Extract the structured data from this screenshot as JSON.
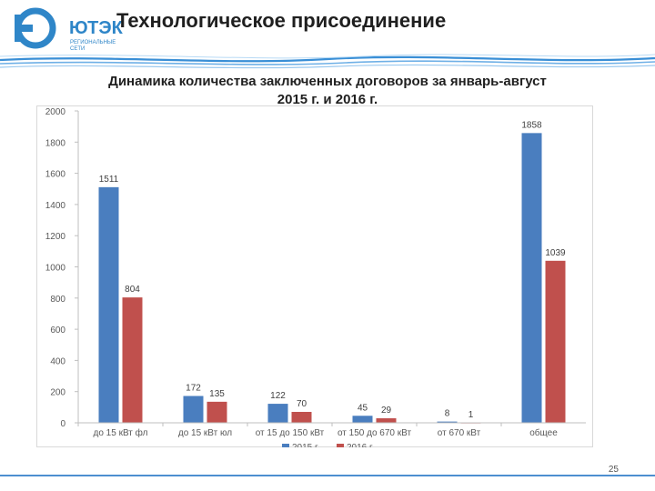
{
  "header": {
    "logo_text": "ЮТЭК",
    "logo_sub_1": "РЕГИОНАЛЬНЫЕ",
    "logo_sub_2": "СЕТИ",
    "title": "Технологическое присоединение"
  },
  "colors": {
    "series_2015": "#4a7ebf",
    "series_2016": "#c0504d",
    "brand": "#2f86c8"
  },
  "chart_data": {
    "type": "bar",
    "title_line1": "Динамика количества заключенных договоров за январь-август",
    "title_line2": "2015 г. и 2016 г.",
    "categories": [
      "до 15 кВт фл",
      "до 15 кВт юл",
      "от 15 до 150 кВт",
      "от 150 до 670 кВт",
      "от 670 кВт",
      "общее"
    ],
    "series": [
      {
        "name": "2015 г.",
        "values": [
          1511,
          172,
          122,
          45,
          8,
          1858
        ]
      },
      {
        "name": "2016 г.",
        "values": [
          804,
          135,
          70,
          29,
          1,
          1039
        ]
      }
    ],
    "y_ticks": [
      "0",
      "200",
      "400",
      "600",
      "800",
      "1000",
      "1200",
      "1400",
      "1600",
      "1800",
      "2000"
    ],
    "ylim": [
      0,
      2000
    ],
    "grid": false,
    "legend_position": "bottom"
  },
  "footer": {
    "page_number": "25"
  }
}
